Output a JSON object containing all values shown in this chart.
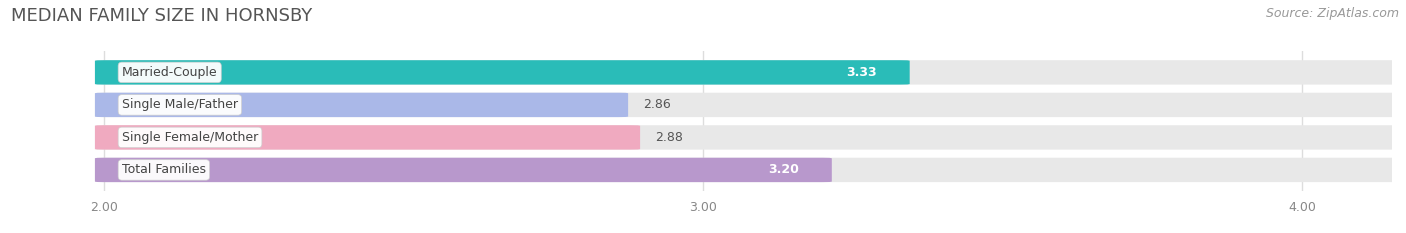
{
  "title": "MEDIAN FAMILY SIZE IN HORNSBY",
  "source": "Source: ZipAtlas.com",
  "categories": [
    "Married-Couple",
    "Single Male/Father",
    "Single Female/Mother",
    "Total Families"
  ],
  "values": [
    3.33,
    2.86,
    2.88,
    3.2
  ],
  "bar_colors": [
    "#2abcb8",
    "#aab8e8",
    "#f0aac0",
    "#b898cc"
  ],
  "bar_height": 0.72,
  "xmin": 2.0,
  "xlim": [
    1.85,
    4.15
  ],
  "xticks": [
    2.0,
    3.0,
    4.0
  ],
  "xtick_labels": [
    "2.00",
    "3.00",
    "4.00"
  ],
  "background_color": "#ffffff",
  "bar_bg_color": "#e8e8e8",
  "title_fontsize": 13,
  "source_fontsize": 9,
  "label_fontsize": 9,
  "value_fontsize": 9,
  "tick_fontsize": 9
}
